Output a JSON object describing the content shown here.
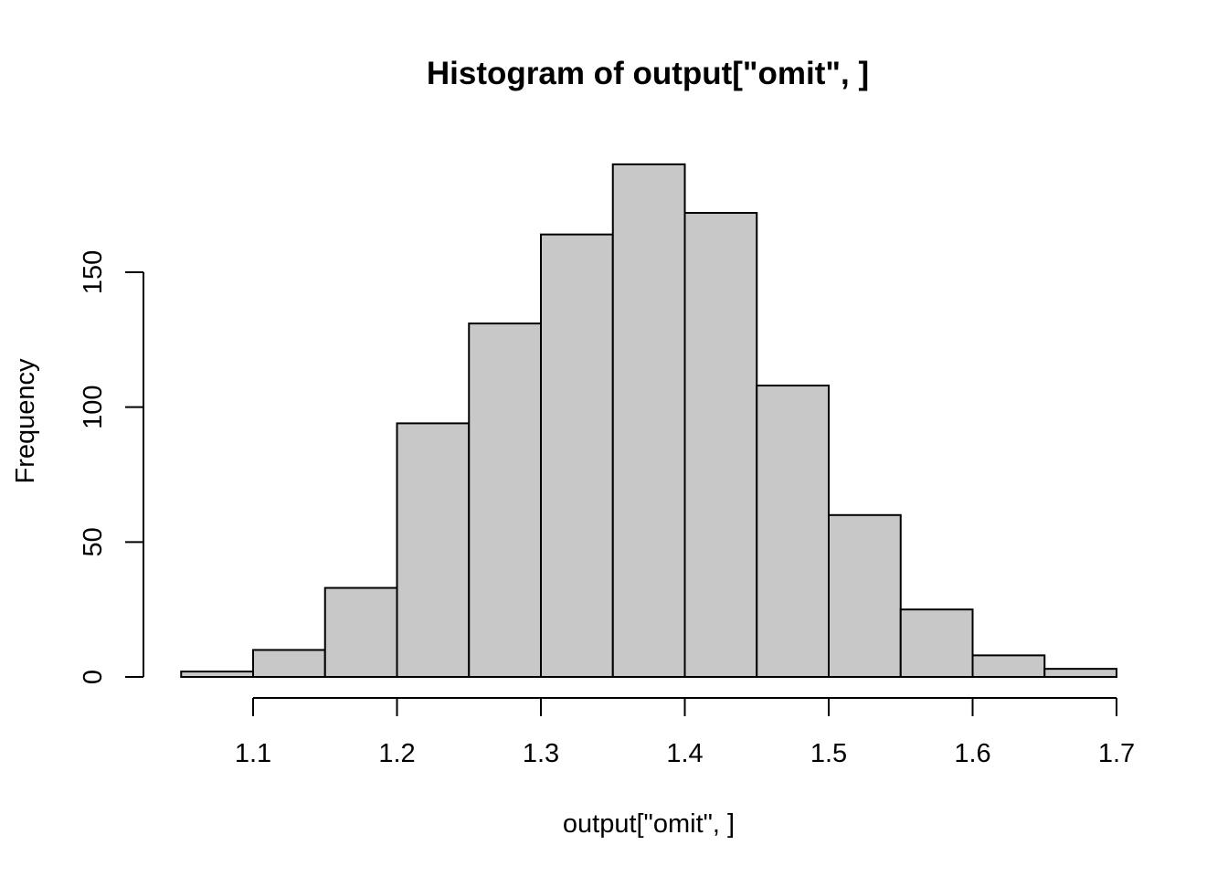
{
  "chart_data": {
    "type": "bar",
    "title": "Histogram of output[\"omit\", ]",
    "xlabel": "output[\"omit\", ]",
    "ylabel": "Frequency",
    "bins": [
      {
        "x0": 1.05,
        "x1": 1.1,
        "count": 2
      },
      {
        "x0": 1.1,
        "x1": 1.15,
        "count": 10
      },
      {
        "x0": 1.15,
        "x1": 1.2,
        "count": 33
      },
      {
        "x0": 1.2,
        "x1": 1.25,
        "count": 94
      },
      {
        "x0": 1.25,
        "x1": 1.3,
        "count": 131
      },
      {
        "x0": 1.3,
        "x1": 1.35,
        "count": 164
      },
      {
        "x0": 1.35,
        "x1": 1.4,
        "count": 190
      },
      {
        "x0": 1.4,
        "x1": 1.45,
        "count": 172
      },
      {
        "x0": 1.45,
        "x1": 1.5,
        "count": 108
      },
      {
        "x0": 1.5,
        "x1": 1.55,
        "count": 60
      },
      {
        "x0": 1.55,
        "x1": 1.6,
        "count": 25
      },
      {
        "x0": 1.6,
        "x1": 1.65,
        "count": 8
      },
      {
        "x0": 1.65,
        "x1": 1.7,
        "count": 3
      }
    ],
    "xticks": [
      "1.1",
      "1.2",
      "1.3",
      "1.4",
      "1.5",
      "1.6",
      "1.7"
    ],
    "yticks": [
      "0",
      "50",
      "100",
      "150"
    ],
    "xlim": [
      1.05,
      1.7
    ],
    "ylim": [
      0,
      190
    ],
    "grid": false,
    "bar_color": "#c8c8c8",
    "edge_color": "#000000"
  }
}
